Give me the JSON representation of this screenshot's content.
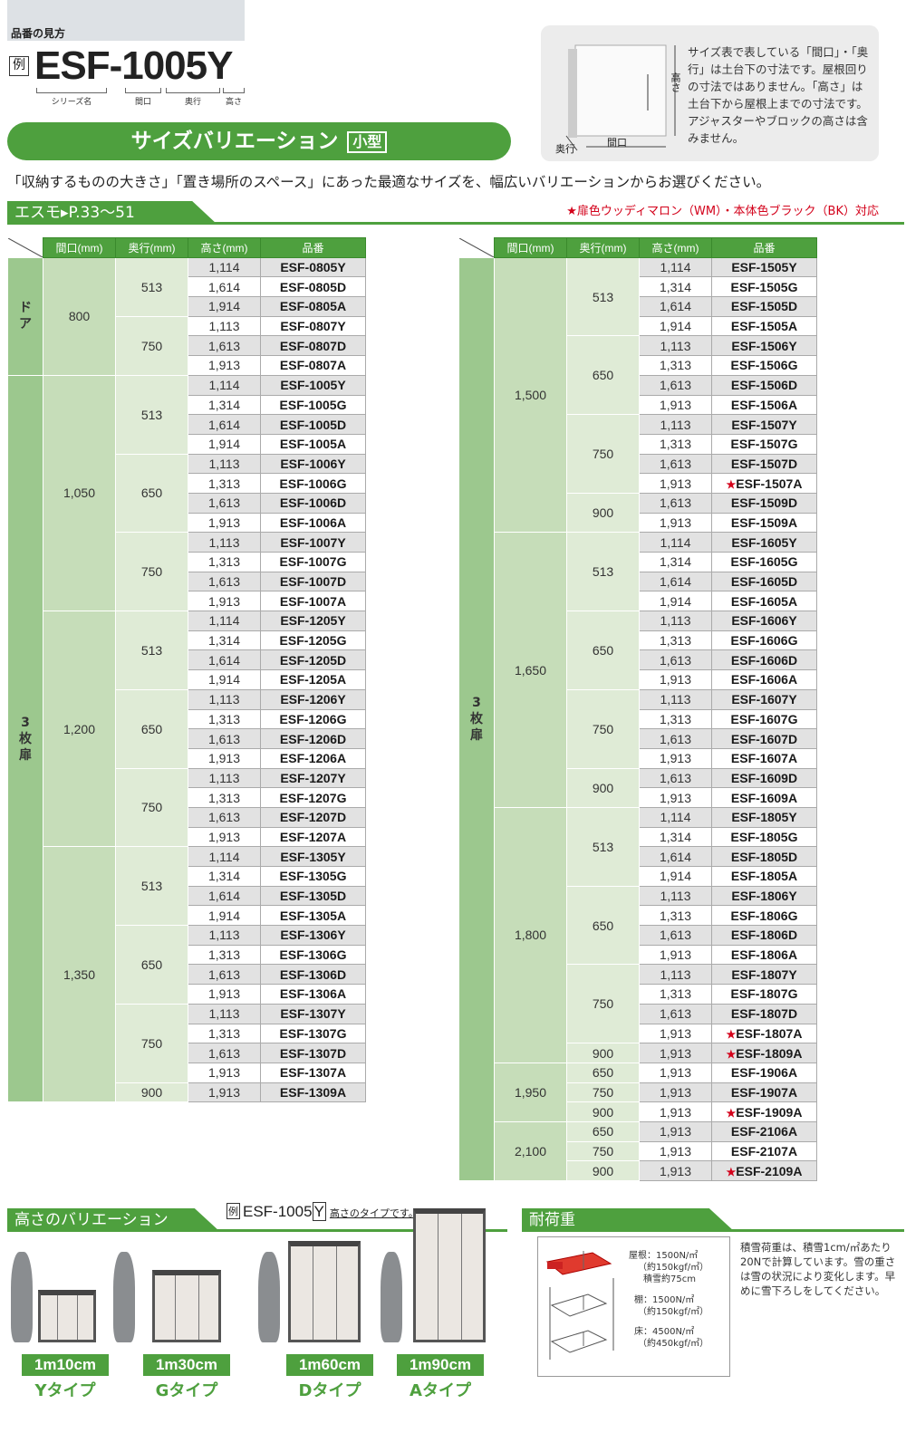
{
  "howto": {
    "title": "品番の見方",
    "rei": "例",
    "code": "ESF-1005Y",
    "parts": [
      "シリーズ名",
      "間口",
      "奥行",
      "高さ"
    ]
  },
  "banner": {
    "title": "サイズバリエーション",
    "tag": "小型"
  },
  "info": {
    "text": "サイズ表で表している「間口」・「奥行」は土台下の寸法です。屋根回りの寸法ではありません。「高さ」は土台下から屋根上までの寸法です。アジャスターやブロックの高さは含みません。",
    "dim_height": "高さ",
    "dim_width": "間口",
    "dim_depth": "奥行"
  },
  "intro": "「収納するものの大きさ」「置き場所のスペース」にあった最適なサイズを、幅広いバリエーションからお選びください。",
  "section": {
    "title": "エスモ▸P.33〜51",
    "note": "★扉色ウッディマロン（WM）・本体色ブラック（BK）対応"
  },
  "table_headers": [
    "間口(mm)",
    "奥行(mm)",
    "高さ(mm)",
    "品番"
  ],
  "star": "★",
  "tables": [
    {
      "sections": [
        {
          "label": "ドア",
          "widths": [
            {
              "w": "800",
              "depths": [
                {
                  "d": "513",
                  "rows": [
                    [
                      "1,114",
                      "ESF-0805Y"
                    ],
                    [
                      "1,614",
                      "ESF-0805D"
                    ],
                    [
                      "1,914",
                      "ESF-0805A"
                    ]
                  ]
                },
                {
                  "d": "750",
                  "rows": [
                    [
                      "1,113",
                      "ESF-0807Y"
                    ],
                    [
                      "1,613",
                      "ESF-0807D"
                    ],
                    [
                      "1,913",
                      "ESF-0807A"
                    ]
                  ]
                }
              ]
            }
          ]
        },
        {
          "label": "3枚扉",
          "widths": [
            {
              "w": "1,050",
              "depths": [
                {
                  "d": "513",
                  "rows": [
                    [
                      "1,114",
                      "ESF-1005Y"
                    ],
                    [
                      "1,314",
                      "ESF-1005G"
                    ],
                    [
                      "1,614",
                      "ESF-1005D"
                    ],
                    [
                      "1,914",
                      "ESF-1005A"
                    ]
                  ]
                },
                {
                  "d": "650",
                  "rows": [
                    [
                      "1,113",
                      "ESF-1006Y"
                    ],
                    [
                      "1,313",
                      "ESF-1006G"
                    ],
                    [
                      "1,613",
                      "ESF-1006D"
                    ],
                    [
                      "1,913",
                      "ESF-1006A"
                    ]
                  ]
                },
                {
                  "d": "750",
                  "rows": [
                    [
                      "1,113",
                      "ESF-1007Y"
                    ],
                    [
                      "1,313",
                      "ESF-1007G"
                    ],
                    [
                      "1,613",
                      "ESF-1007D"
                    ],
                    [
                      "1,913",
                      "ESF-1007A"
                    ]
                  ]
                }
              ]
            },
            {
              "w": "1,200",
              "depths": [
                {
                  "d": "513",
                  "rows": [
                    [
                      "1,114",
                      "ESF-1205Y"
                    ],
                    [
                      "1,314",
                      "ESF-1205G"
                    ],
                    [
                      "1,614",
                      "ESF-1205D"
                    ],
                    [
                      "1,914",
                      "ESF-1205A"
                    ]
                  ]
                },
                {
                  "d": "650",
                  "rows": [
                    [
                      "1,113",
                      "ESF-1206Y"
                    ],
                    [
                      "1,313",
                      "ESF-1206G"
                    ],
                    [
                      "1,613",
                      "ESF-1206D"
                    ],
                    [
                      "1,913",
                      "ESF-1206A"
                    ]
                  ]
                },
                {
                  "d": "750",
                  "rows": [
                    [
                      "1,113",
                      "ESF-1207Y"
                    ],
                    [
                      "1,313",
                      "ESF-1207G"
                    ],
                    [
                      "1,613",
                      "ESF-1207D"
                    ],
                    [
                      "1,913",
                      "ESF-1207A"
                    ]
                  ]
                }
              ]
            },
            {
              "w": "1,350",
              "depths": [
                {
                  "d": "513",
                  "rows": [
                    [
                      "1,114",
                      "ESF-1305Y"
                    ],
                    [
                      "1,314",
                      "ESF-1305G"
                    ],
                    [
                      "1,614",
                      "ESF-1305D"
                    ],
                    [
                      "1,914",
                      "ESF-1305A"
                    ]
                  ]
                },
                {
                  "d": "650",
                  "rows": [
                    [
                      "1,113",
                      "ESF-1306Y"
                    ],
                    [
                      "1,313",
                      "ESF-1306G"
                    ],
                    [
                      "1,613",
                      "ESF-1306D"
                    ],
                    [
                      "1,913",
                      "ESF-1306A"
                    ]
                  ]
                },
                {
                  "d": "750",
                  "rows": [
                    [
                      "1,113",
                      "ESF-1307Y"
                    ],
                    [
                      "1,313",
                      "ESF-1307G"
                    ],
                    [
                      "1,613",
                      "ESF-1307D"
                    ],
                    [
                      "1,913",
                      "ESF-1307A"
                    ]
                  ]
                },
                {
                  "d": "900",
                  "rows": [
                    [
                      "1,913",
                      "ESF-1309A"
                    ]
                  ]
                }
              ]
            }
          ]
        }
      ]
    },
    {
      "sections": [
        {
          "label": "3枚扉",
          "widths": [
            {
              "w": "1,500",
              "depths": [
                {
                  "d": "513",
                  "rows": [
                    [
                      "1,114",
                      "ESF-1505Y"
                    ],
                    [
                      "1,314",
                      "ESF-1505G"
                    ],
                    [
                      "1,614",
                      "ESF-1505D"
                    ],
                    [
                      "1,914",
                      "ESF-1505A"
                    ]
                  ]
                },
                {
                  "d": "650",
                  "rows": [
                    [
                      "1,113",
                      "ESF-1506Y"
                    ],
                    [
                      "1,313",
                      "ESF-1506G"
                    ],
                    [
                      "1,613",
                      "ESF-1506D"
                    ],
                    [
                      "1,913",
                      "ESF-1506A"
                    ]
                  ]
                },
                {
                  "d": "750",
                  "rows": [
                    [
                      "1,113",
                      "ESF-1507Y"
                    ],
                    [
                      "1,313",
                      "ESF-1507G"
                    ],
                    [
                      "1,613",
                      "ESF-1507D"
                    ],
                    [
                      "1,913",
                      "ESF-1507A",
                      1
                    ]
                  ]
                },
                {
                  "d": "900",
                  "rows": [
                    [
                      "1,613",
                      "ESF-1509D"
                    ],
                    [
                      "1,913",
                      "ESF-1509A"
                    ]
                  ]
                }
              ]
            },
            {
              "w": "1,650",
              "depths": [
                {
                  "d": "513",
                  "rows": [
                    [
                      "1,114",
                      "ESF-1605Y"
                    ],
                    [
                      "1,314",
                      "ESF-1605G"
                    ],
                    [
                      "1,614",
                      "ESF-1605D"
                    ],
                    [
                      "1,914",
                      "ESF-1605A"
                    ]
                  ]
                },
                {
                  "d": "650",
                  "rows": [
                    [
                      "1,113",
                      "ESF-1606Y"
                    ],
                    [
                      "1,313",
                      "ESF-1606G"
                    ],
                    [
                      "1,613",
                      "ESF-1606D"
                    ],
                    [
                      "1,913",
                      "ESF-1606A"
                    ]
                  ]
                },
                {
                  "d": "750",
                  "rows": [
                    [
                      "1,113",
                      "ESF-1607Y"
                    ],
                    [
                      "1,313",
                      "ESF-1607G"
                    ],
                    [
                      "1,613",
                      "ESF-1607D"
                    ],
                    [
                      "1,913",
                      "ESF-1607A"
                    ]
                  ]
                },
                {
                  "d": "900",
                  "rows": [
                    [
                      "1,613",
                      "ESF-1609D"
                    ],
                    [
                      "1,913",
                      "ESF-1609A"
                    ]
                  ]
                }
              ]
            },
            {
              "w": "1,800",
              "depths": [
                {
                  "d": "513",
                  "rows": [
                    [
                      "1,114",
                      "ESF-1805Y"
                    ],
                    [
                      "1,314",
                      "ESF-1805G"
                    ],
                    [
                      "1,614",
                      "ESF-1805D"
                    ],
                    [
                      "1,914",
                      "ESF-1805A"
                    ]
                  ]
                },
                {
                  "d": "650",
                  "rows": [
                    [
                      "1,113",
                      "ESF-1806Y"
                    ],
                    [
                      "1,313",
                      "ESF-1806G"
                    ],
                    [
                      "1,613",
                      "ESF-1806D"
                    ],
                    [
                      "1,913",
                      "ESF-1806A"
                    ]
                  ]
                },
                {
                  "d": "750",
                  "rows": [
                    [
                      "1,113",
                      "ESF-1807Y"
                    ],
                    [
                      "1,313",
                      "ESF-1807G"
                    ],
                    [
                      "1,613",
                      "ESF-1807D"
                    ],
                    [
                      "1,913",
                      "ESF-1807A",
                      1
                    ]
                  ]
                },
                {
                  "d": "900",
                  "rows": [
                    [
                      "1,913",
                      "ESF-1809A",
                      1
                    ]
                  ]
                }
              ]
            },
            {
              "w": "1,950",
              "depths": [
                {
                  "d": "650",
                  "rows": [
                    [
                      "1,913",
                      "ESF-1906A"
                    ]
                  ]
                },
                {
                  "d": "750",
                  "rows": [
                    [
                      "1,913",
                      "ESF-1907A"
                    ]
                  ]
                },
                {
                  "d": "900",
                  "rows": [
                    [
                      "1,913",
                      "ESF-1909A",
                      1
                    ]
                  ]
                }
              ]
            },
            {
              "w": "2,100",
              "depths": [
                {
                  "d": "650",
                  "rows": [
                    [
                      "1,913",
                      "ESF-2106A"
                    ]
                  ]
                },
                {
                  "d": "750",
                  "rows": [
                    [
                      "1,913",
                      "ESF-2107A"
                    ]
                  ]
                },
                {
                  "d": "900",
                  "rows": [
                    [
                      "1,913",
                      "ESF-2109A",
                      1
                    ]
                  ]
                }
              ]
            }
          ]
        }
      ]
    }
  ],
  "height_variation": {
    "title": "高さのバリエーション",
    "rei": "例",
    "code_prefix": "ESF-1005",
    "code_suffix": "Y",
    "note": "高さのタイプです。",
    "types": [
      {
        "height": "1m10cm",
        "type": "Yタイプ"
      },
      {
        "height": "1m30cm",
        "type": "Gタイプ"
      },
      {
        "height": "1m60cm",
        "type": "Dタイプ"
      },
      {
        "height": "1m90cm",
        "type": "Aタイプ"
      }
    ]
  },
  "load": {
    "title": "耐荷重",
    "roof": [
      "屋根：1500N/㎡",
      "（約150kgf/㎡）",
      "積雪約75cm"
    ],
    "shelf": [
      "棚：1500N/㎡",
      "（約150kgf/㎡）"
    ],
    "floor": [
      "床：4500N/㎡",
      "（約450kgf/㎡）"
    ],
    "note": "積雪荷重は、積雪1cm/㎡あたり20Nで計算しています。雪の重さは雪の状況により変化します。早めに雪下ろしをしてください。"
  },
  "colors": {
    "green": "#4ea03e",
    "red": "#d3001a"
  }
}
